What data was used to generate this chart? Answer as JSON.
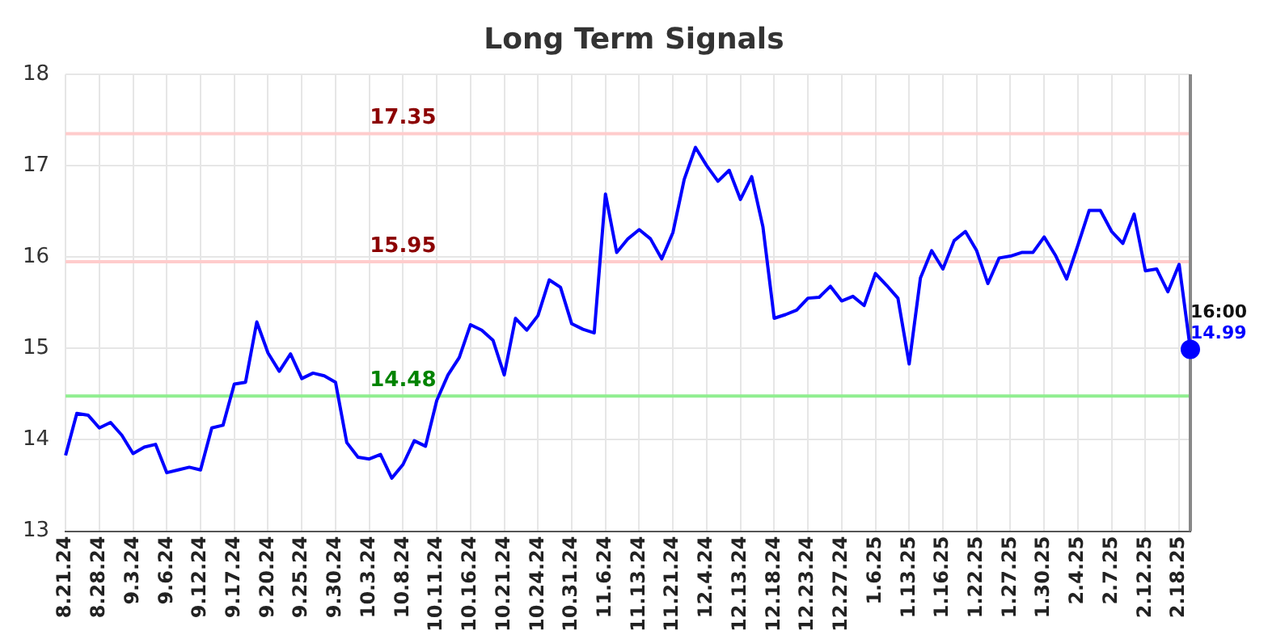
{
  "chart_data": {
    "type": "line",
    "title": "Long Term Signals",
    "categories": [
      "8.21.24",
      null,
      null,
      "8.28.24",
      null,
      null,
      "9.3.24",
      null,
      null,
      "9.6.24",
      null,
      null,
      "9.12.24",
      null,
      null,
      "9.17.24",
      null,
      null,
      "9.20.24",
      null,
      null,
      "9.25.24",
      null,
      null,
      "9.30.24",
      null,
      null,
      "10.3.24",
      null,
      null,
      "10.8.24",
      null,
      null,
      "10.11.24",
      null,
      null,
      "10.16.24",
      null,
      null,
      "10.21.24",
      null,
      null,
      "10.24.24",
      null,
      null,
      "10.31.24",
      null,
      null,
      "11.6.24",
      null,
      null,
      "11.13.24",
      null,
      null,
      "11.21.24",
      null,
      null,
      "12.4.24",
      null,
      null,
      "12.13.24",
      null,
      null,
      "12.18.24",
      null,
      null,
      "12.23.24",
      null,
      null,
      "12.27.24",
      null,
      null,
      "1.6.25",
      null,
      null,
      "1.13.25",
      null,
      null,
      "1.16.25",
      null,
      null,
      "1.22.25",
      null,
      null,
      "1.27.25",
      null,
      null,
      "1.30.25",
      null,
      null,
      "2.4.25",
      null,
      null,
      "2.7.25",
      null,
      null,
      "2.12.25",
      null,
      null,
      "2.18.25",
      null
    ],
    "series": [
      {
        "color": "#0000ff",
        "values": [
          13.83,
          14.29,
          14.27,
          14.13,
          14.19,
          14.05,
          13.85,
          13.92,
          13.95,
          13.64,
          13.67,
          13.7,
          13.67,
          14.13,
          14.16,
          14.61,
          14.63,
          15.29,
          14.95,
          14.75,
          14.94,
          14.67,
          14.73,
          14.7,
          14.63,
          13.97,
          13.81,
          13.79,
          13.84,
          13.58,
          13.73,
          13.99,
          13.93,
          14.43,
          14.71,
          14.9,
          15.26,
          15.2,
          15.09,
          14.71,
          15.33,
          15.2,
          15.36,
          15.75,
          15.67,
          15.27,
          15.21,
          15.17,
          16.69,
          16.05,
          16.2,
          16.3,
          16.2,
          15.98,
          16.27,
          16.85,
          17.2,
          17.0,
          16.83,
          16.95,
          16.63,
          16.88,
          16.33,
          15.33,
          15.37,
          15.42,
          15.55,
          15.56,
          15.68,
          15.52,
          15.57,
          15.47,
          15.82,
          15.69,
          15.55,
          14.83,
          15.77,
          16.07,
          15.87,
          16.18,
          16.28,
          16.07,
          15.71,
          15.99,
          16.01,
          16.05,
          16.05,
          16.22,
          16.02,
          15.76,
          16.13,
          16.51,
          16.51,
          16.28,
          16.15,
          16.47,
          15.85,
          15.87,
          15.62,
          15.92,
          14.99
        ],
        "value_labels": [
          null,
          null,
          null,
          null,
          null,
          null,
          null,
          null,
          null,
          null,
          null,
          null,
          null,
          null,
          null,
          null,
          null,
          null,
          null,
          null,
          null,
          null,
          null,
          null,
          null,
          null,
          null,
          null,
          null,
          null,
          null,
          null,
          null,
          null,
          null,
          null,
          null,
          null,
          null,
          null,
          null,
          null,
          null,
          null,
          null,
          null,
          null,
          null,
          null,
          null,
          null,
          null,
          null,
          null,
          null,
          null,
          null,
          null,
          null,
          null,
          null,
          null,
          null,
          null,
          null,
          null,
          null,
          null,
          null,
          null,
          null,
          null,
          null,
          null,
          null,
          null,
          null,
          null,
          null,
          null,
          null,
          null,
          null,
          null,
          null,
          null,
          null,
          null,
          null,
          null,
          null,
          null,
          null,
          null,
          null,
          null,
          null,
          null,
          null,
          null,
          "14.99"
        ]
      }
    ],
    "ylim": [
      13,
      18
    ],
    "yticks": [
      13,
      14,
      15,
      16,
      17,
      18
    ],
    "ref_lines": [
      {
        "axis": "y",
        "value": 17.35,
        "label": "17.35",
        "color": "#ffcccc"
      },
      {
        "axis": "y",
        "value": 15.95,
        "label": "15.95",
        "color": "#ffcccc"
      },
      {
        "axis": "y",
        "value": 14.48,
        "label": "14.48",
        "color": "#90ee90"
      }
    ],
    "annotations": [
      "16:00"
    ],
    "grid": true,
    "legend": false,
    "marker": "none",
    "line_style": "solid"
  }
}
